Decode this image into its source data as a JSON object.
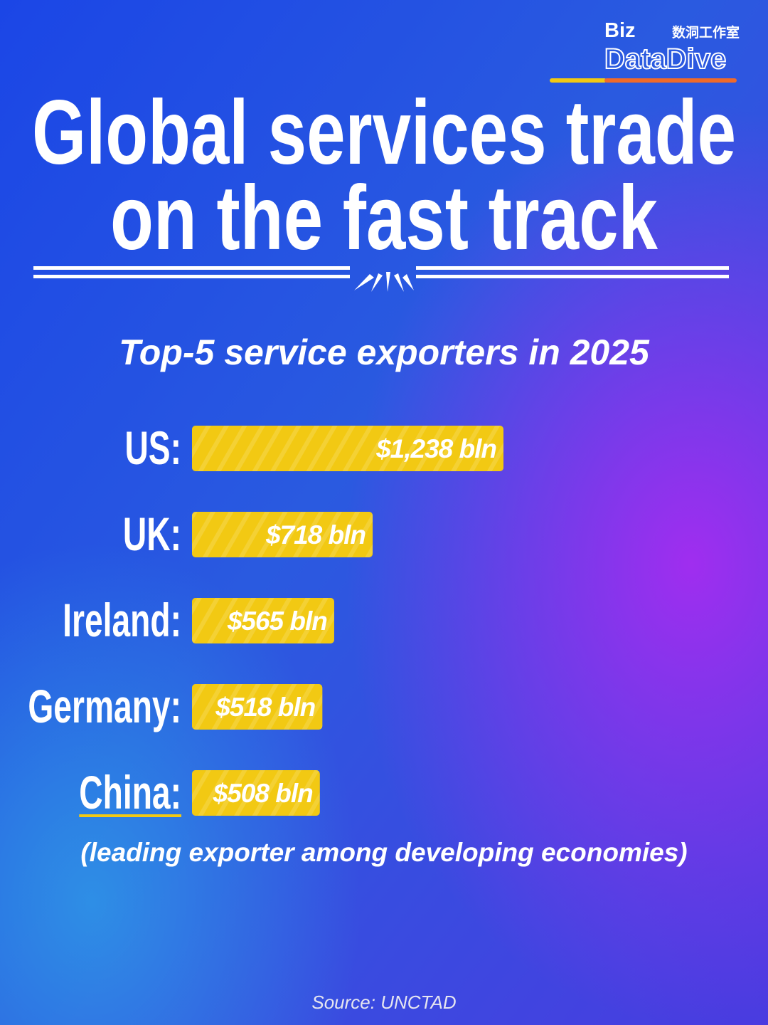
{
  "logo": [
    "Biz",
    "数洞工作室",
    "DataDive"
  ],
  "chart_data": {
    "type": "bar",
    "orientation": "horizontal",
    "title": [
      "Global services trade",
      "on the fast track"
    ],
    "subtitle": "Top-5 service exporters in 2025",
    "categories": [
      "US:",
      "UK:",
      "Ireland:",
      "Germany:",
      "China:"
    ],
    "values": [
      1238,
      718,
      565,
      518,
      508
    ],
    "value_labels": [
      "$1,238 bln",
      "$718 bln",
      "$565 bln",
      "$518 bln",
      "$508 bln"
    ],
    "color": "#f2c913",
    "annotation": "(leading exporter among developing economies)",
    "source": "Source: UNCTAD"
  }
}
